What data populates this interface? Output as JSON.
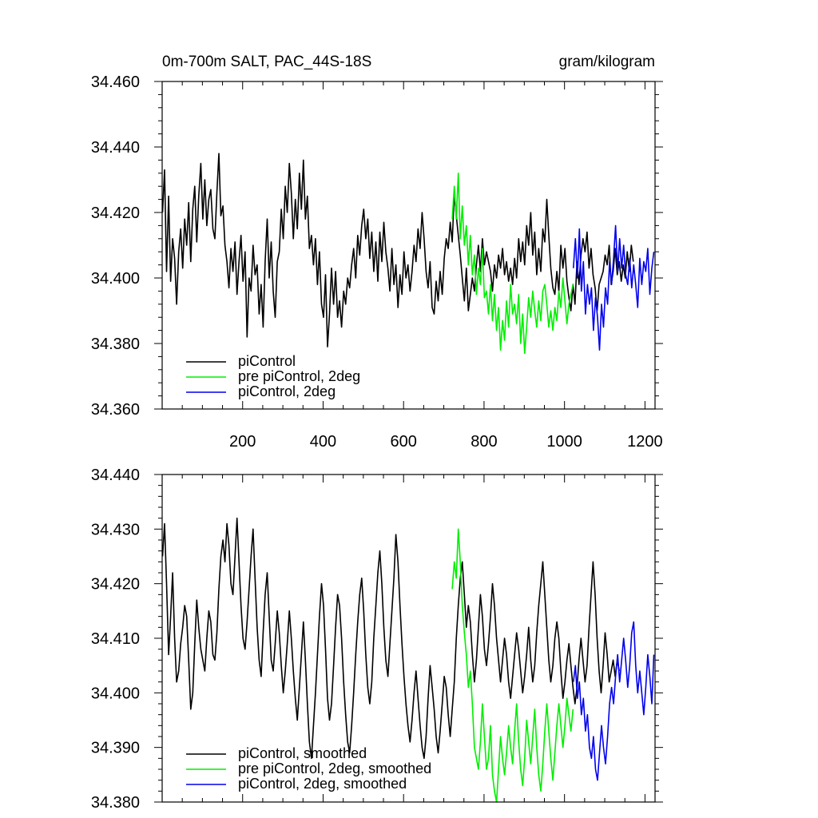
{
  "colors": {
    "piControl": "#000000",
    "pre_piControl_2deg": "#00ee00",
    "piControl_2deg": "#0000ee"
  },
  "chart_data": [
    {
      "type": "line",
      "title": "0m-700m SALT, PAC_44S-18S",
      "units": "gram/kilogram",
      "xlim": [
        0,
        1225
      ],
      "ylim": [
        34.36,
        34.46
      ],
      "y_ticks": [
        "34.360",
        "34.380",
        "34.400",
        "34.420",
        "34.440",
        "34.460"
      ],
      "x_ticks": [
        "200",
        "400",
        "600",
        "800",
        "1000",
        "1200"
      ],
      "legend": [
        "piControl",
        "pre piControl, 2deg",
        "piControl, 2deg"
      ],
      "series": [
        {
          "name": "piControl",
          "color_key": "piControl",
          "x_start": 1,
          "x_step": 5,
          "values": [
            34.42,
            34.433,
            34.402,
            34.425,
            34.399,
            34.412,
            34.406,
            34.392,
            34.408,
            34.415,
            34.403,
            34.418,
            34.41,
            34.423,
            34.405,
            34.421,
            34.428,
            34.411,
            34.425,
            34.435,
            34.418,
            34.43,
            34.416,
            34.424,
            34.427,
            34.415,
            34.412,
            34.426,
            34.438,
            34.419,
            34.422,
            34.41,
            34.405,
            34.397,
            34.409,
            34.402,
            34.411,
            34.395,
            34.405,
            34.413,
            34.399,
            34.408,
            34.382,
            34.4,
            34.396,
            34.41,
            34.401,
            34.404,
            34.389,
            34.398,
            34.385,
            34.405,
            34.418,
            34.4,
            34.411,
            34.396,
            34.388,
            34.405,
            34.408,
            34.421,
            34.412,
            34.428,
            34.42,
            34.435,
            34.426,
            34.412,
            34.424,
            34.415,
            34.432,
            34.421,
            34.436,
            34.418,
            34.425,
            34.409,
            34.413,
            34.404,
            34.412,
            34.398,
            34.408,
            34.392,
            34.388,
            34.401,
            34.379,
            34.389,
            34.403,
            34.392,
            34.402,
            34.388,
            34.393,
            34.385,
            34.396,
            34.392,
            34.4,
            34.397,
            34.404,
            34.409,
            34.4,
            34.413,
            34.407,
            34.416,
            34.421,
            34.412,
            34.418,
            34.406,
            34.414,
            34.402,
            34.411,
            34.399,
            34.414,
            34.405,
            34.417,
            34.408,
            34.403,
            34.396,
            34.409,
            34.398,
            34.404,
            34.391,
            34.401,
            34.395,
            34.408,
            34.4,
            34.404,
            34.396,
            34.402,
            34.41,
            34.405,
            34.415,
            34.409,
            34.42,
            34.412,
            34.402,
            34.397,
            34.405,
            34.391,
            34.389,
            34.399,
            34.393,
            34.402,
            34.395,
            34.406,
            34.412,
            34.409,
            34.417,
            34.411,
            34.426,
            34.419,
            34.413,
            34.407,
            34.4,
            34.393,
            34.403,
            34.39,
            34.395,
            34.4,
            34.396,
            34.404,
            34.41,
            34.402,
            34.412,
            34.404,
            34.408,
            34.405,
            34.402,
            34.396,
            34.404,
            34.4,
            34.407,
            34.403,
            34.409,
            34.401,
            34.405,
            34.399,
            34.403,
            34.398,
            34.406,
            34.4,
            34.412,
            34.405,
            34.411,
            34.404,
            34.416,
            34.41,
            34.42,
            34.407,
            34.414,
            34.401,
            34.409,
            34.402,
            34.415,
            34.411,
            34.424,
            34.413,
            34.403,
            34.397,
            34.395,
            34.402,
            34.396,
            34.41,
            34.403,
            34.409,
            34.399,
            34.394,
            34.39,
            34.398,
            34.392,
            34.405,
            34.398,
            34.407,
            34.412,
            34.408,
            34.414,
            34.403,
            34.409,
            34.401,
            34.397,
            34.39,
            34.398,
            34.4,
            34.402,
            34.407,
            34.404,
            34.41,
            34.398,
            34.402,
            34.409,
            34.401,
            34.405,
            34.399,
            34.404,
            34.4,
            34.408,
            34.402,
            34.41,
            34.405
          ]
        },
        {
          "name": "pre piControl, 2deg",
          "color_key": "pre_piControl_2deg",
          "x_start": 721,
          "x_step": 5,
          "values": [
            34.418,
            34.428,
            34.418,
            34.432,
            34.412,
            34.422,
            34.41,
            34.416,
            34.404,
            34.413,
            34.401,
            34.407,
            34.395,
            34.403,
            34.398,
            34.409,
            34.394,
            34.396,
            34.389,
            34.398,
            34.387,
            34.395,
            34.384,
            34.391,
            34.378,
            34.387,
            34.381,
            34.393,
            34.385,
            34.398,
            34.389,
            34.392,
            34.386,
            34.395,
            34.38,
            34.389,
            34.377,
            34.385,
            34.394,
            34.388,
            34.396,
            34.39,
            34.385,
            34.393,
            34.387,
            34.396,
            34.398,
            34.392,
            34.385,
            34.39,
            34.384,
            34.391,
            34.387,
            34.396,
            34.391,
            34.4,
            34.393,
            34.386,
            34.392,
            34.395,
            34.398
          ]
        },
        {
          "name": "piControl, 2deg",
          "color_key": "piControl_2deg",
          "x_start": 1022,
          "x_step": 5,
          "values": [
            34.403,
            34.412,
            34.4,
            34.415,
            34.396,
            34.405,
            34.389,
            34.398,
            34.392,
            34.397,
            34.384,
            34.394,
            34.388,
            34.378,
            34.392,
            34.385,
            34.397,
            34.392,
            34.405,
            34.398,
            34.406,
            34.416,
            34.402,
            34.412,
            34.403,
            34.41,
            34.401,
            34.398,
            34.406,
            34.397,
            34.404,
            34.398,
            34.391,
            34.406,
            34.398,
            34.405,
            34.402,
            34.409,
            34.395,
            34.403,
            34.408
          ]
        }
      ]
    },
    {
      "type": "line",
      "xlim": [
        0,
        1225
      ],
      "ylim": [
        34.38,
        34.44
      ],
      "y_ticks": [
        "34.380",
        "34.390",
        "34.400",
        "34.410",
        "34.420",
        "34.430",
        "34.440"
      ],
      "legend": [
        "piControl, smoothed",
        "pre piControl, 2deg, smoothed",
        "piControl, 2deg, smoothed"
      ],
      "series": [
        {
          "name": "piControl, smoothed",
          "color_key": "piControl",
          "x_start": 1,
          "x_step": 5,
          "values": [
            34.425,
            34.431,
            34.42,
            34.407,
            34.414,
            34.422,
            34.41,
            34.402,
            34.404,
            34.409,
            34.412,
            34.416,
            34.414,
            34.406,
            34.397,
            34.4,
            34.409,
            34.417,
            34.412,
            34.408,
            34.406,
            34.404,
            34.41,
            34.415,
            34.413,
            34.407,
            34.406,
            34.411,
            34.419,
            34.425,
            34.428,
            34.424,
            34.431,
            34.427,
            34.42,
            34.418,
            34.425,
            34.432,
            34.424,
            34.416,
            34.41,
            34.408,
            34.413,
            34.419,
            34.425,
            34.43,
            34.421,
            34.412,
            34.406,
            34.403,
            34.411,
            34.418,
            34.422,
            34.414,
            34.406,
            34.404,
            34.409,
            34.415,
            34.411,
            34.405,
            34.4,
            34.404,
            34.409,
            34.415,
            34.41,
            34.404,
            34.399,
            34.395,
            34.401,
            34.407,
            34.413,
            34.406,
            34.398,
            34.391,
            34.388,
            34.394,
            34.4,
            34.407,
            34.414,
            34.42,
            34.416,
            34.408,
            34.399,
            34.395,
            34.398,
            34.405,
            34.412,
            34.418,
            34.416,
            34.41,
            34.402,
            34.396,
            34.391,
            34.389,
            34.394,
            34.4,
            34.407,
            34.413,
            34.418,
            34.421,
            34.415,
            34.407,
            34.401,
            34.398,
            34.402,
            34.41,
            34.416,
            34.422,
            34.426,
            34.42,
            34.412,
            34.406,
            34.403,
            34.409,
            34.415,
            34.421,
            34.429,
            34.424,
            34.416,
            34.409,
            34.403,
            34.398,
            34.394,
            34.391,
            34.395,
            34.4,
            34.404,
            34.399,
            34.394,
            34.39,
            34.388,
            34.392,
            34.399,
            34.405,
            34.401,
            34.397,
            34.392,
            34.389,
            34.393,
            34.398,
            34.403,
            34.401,
            34.396,
            34.392,
            34.397,
            34.402,
            34.41,
            34.416,
            34.421,
            34.424,
            34.418,
            34.412,
            34.416,
            34.413,
            34.407,
            34.402,
            34.406,
            34.412,
            34.418,
            34.414,
            34.408,
            34.405,
            34.409,
            34.414,
            34.42,
            34.416,
            34.41,
            34.406,
            34.402,
            34.406,
            34.41,
            34.407,
            34.402,
            34.399,
            34.403,
            34.407,
            34.411,
            34.408,
            34.404,
            34.4,
            34.403,
            34.407,
            34.412,
            34.406,
            34.402,
            34.405,
            34.411,
            34.416,
            34.42,
            34.424,
            34.418,
            34.412,
            34.406,
            34.402,
            34.405,
            34.41,
            34.413,
            34.41,
            34.404,
            34.399,
            34.402,
            34.406,
            34.409,
            34.405,
            34.401,
            34.398,
            34.401,
            34.406,
            34.41,
            34.406,
            34.402,
            34.405,
            34.412,
            34.418,
            34.424,
            34.418,
            34.41,
            34.404,
            34.4,
            34.405,
            34.411,
            34.407,
            34.402,
            34.404,
            34.406,
            34.403,
            34.406,
            34.404
          ]
        },
        {
          "name": "pre piControl, 2deg, smoothed",
          "color_key": "pre_piControl_2deg",
          "x_start": 721,
          "x_step": 5,
          "values": [
            34.419,
            34.424,
            34.421,
            34.43,
            34.424,
            34.416,
            34.411,
            34.407,
            34.401,
            34.404,
            34.398,
            34.39,
            34.388,
            34.386,
            34.391,
            34.398,
            34.392,
            34.386,
            34.388,
            34.394,
            34.385,
            34.382,
            34.38,
            34.386,
            34.392,
            34.388,
            34.385,
            34.389,
            34.394,
            34.39,
            34.387,
            34.393,
            34.398,
            34.391,
            34.386,
            34.383,
            34.388,
            34.395,
            34.391,
            34.387,
            34.392,
            34.397,
            34.39,
            34.385,
            34.382,
            34.387,
            34.393,
            34.398,
            34.393,
            34.388,
            34.384,
            34.389,
            34.394,
            34.398,
            34.394,
            34.39,
            34.394,
            34.399,
            34.396,
            34.393,
            34.397
          ]
        },
        {
          "name": "piControl, 2deg, smoothed",
          "color_key": "piControl_2deg",
          "x_start": 1022,
          "x_step": 5,
          "values": [
            34.402,
            34.405,
            34.399,
            34.402,
            34.396,
            34.399,
            34.393,
            34.396,
            34.39,
            34.388,
            34.392,
            34.386,
            34.384,
            34.389,
            34.394,
            34.39,
            34.387,
            34.392,
            34.398,
            34.401,
            34.398,
            34.403,
            34.407,
            34.402,
            34.406,
            34.41,
            34.406,
            34.401,
            34.405,
            34.411,
            34.413,
            34.405,
            34.4,
            34.404,
            34.4,
            34.396,
            34.401,
            34.407,
            34.403,
            34.398,
            34.407
          ]
        }
      ]
    }
  ]
}
